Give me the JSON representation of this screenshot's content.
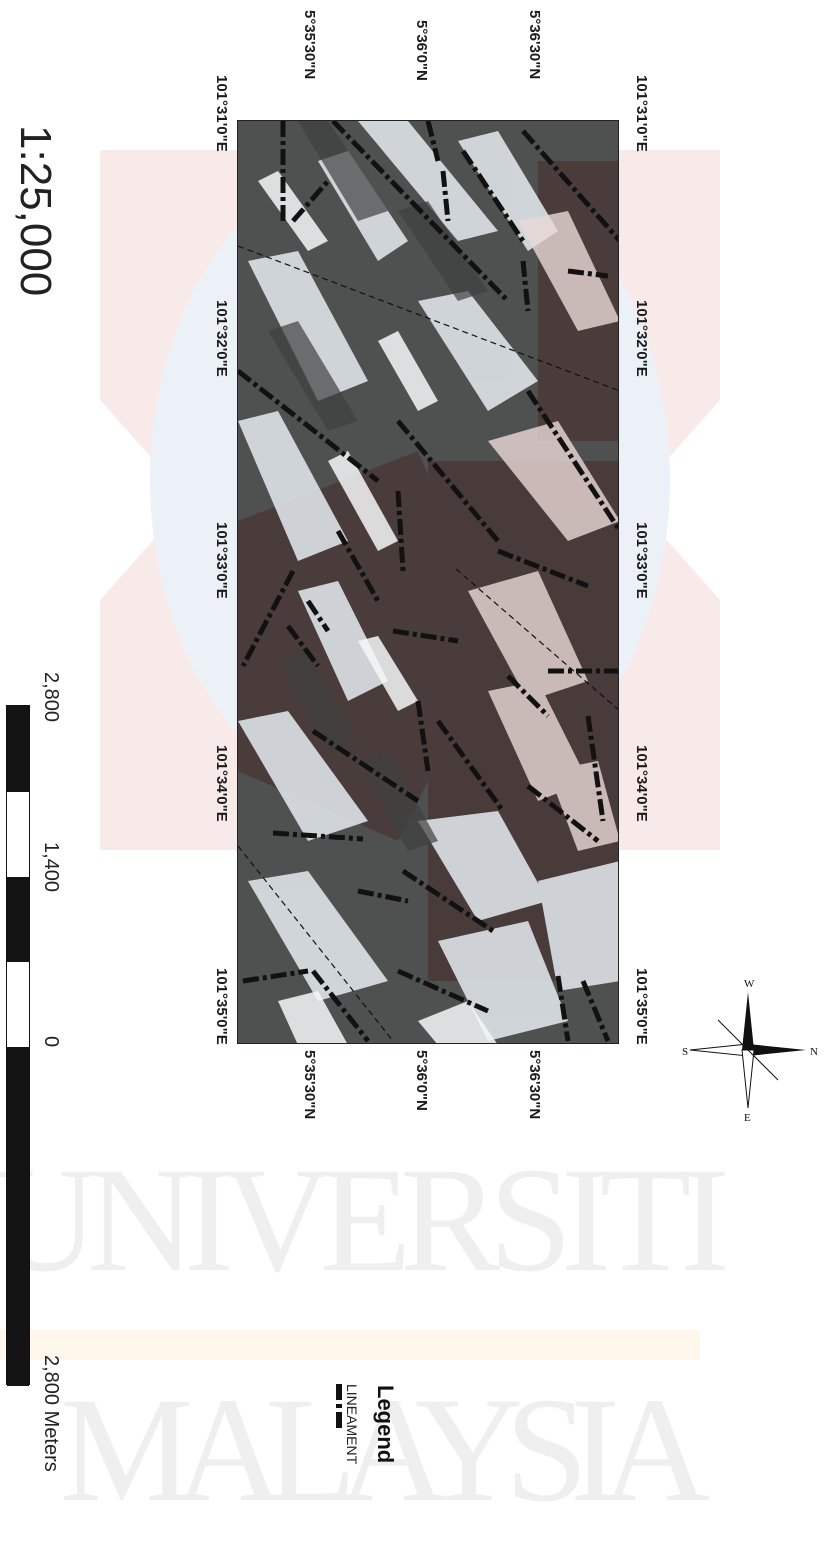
{
  "map": {
    "top_labels": [
      "5°35'30\"N",
      "5°36'0\"N",
      "5°36'30\"N"
    ],
    "bottom_labels": [
      "5°35'30\"N",
      "5°36'0\"N",
      "5°36'30\"N"
    ],
    "left_labels": [
      "101°31'0\"E",
      "101°32'0\"E",
      "101°33'0\"E",
      "101°34'0\"E",
      "101°35'0\"E"
    ],
    "right_labels": [
      "101°31'0\"E",
      "101°32'0\"E",
      "101°33'0\"E",
      "101°34'0\"E",
      "101°35'0\"E"
    ],
    "corner_top_left": "101°31'0\"E"
  },
  "scale": {
    "ratio": "1:25,000",
    "labels": [
      "2,800",
      "1,400",
      "0",
      "2,800 Meters"
    ]
  },
  "legend": {
    "title": "Legend",
    "item": "LINEAMENT"
  },
  "north_arrow": {
    "n": "N",
    "s": "S",
    "e": "E",
    "w": "W"
  },
  "watermark": {
    "line1": "UNIVERSITI",
    "line2": "MALAYSIA"
  },
  "colors": {
    "dark": "#505050",
    "brown": "#4a3c3c",
    "light": "#dfe5ea",
    "pink": "#e9d6d4",
    "lineament": "#111111"
  }
}
